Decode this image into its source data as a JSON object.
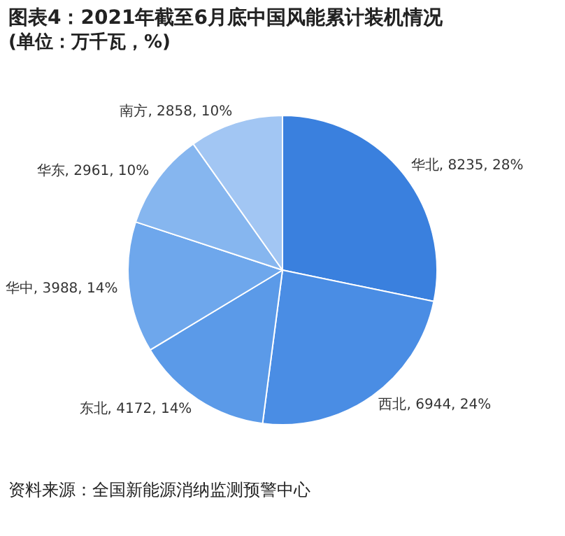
{
  "chart_data": {
    "type": "pie",
    "title": "图表4：2021年截至6月底中国风能累计装机情况",
    "subtitle": "(单位：万千瓦，%)",
    "categories": [
      "华北",
      "西北",
      "东北",
      "华中",
      "华东",
      "南方"
    ],
    "values": [
      8235,
      6944,
      4172,
      3988,
      2961,
      2858
    ],
    "value_labels": [
      "8235, 28%",
      "6944, 24%",
      "4172, 14%",
      "3988, 14%",
      "2961, 10%",
      "2858, 10%"
    ],
    "colors": [
      "#3a80de",
      "#4a8de4",
      "#5b9ae8",
      "#6ea7ec",
      "#86b6ef",
      "#a2c6f3"
    ],
    "legend": false,
    "annotations": [
      "资料来源：全国新能源消纳监测预警中心"
    ]
  }
}
